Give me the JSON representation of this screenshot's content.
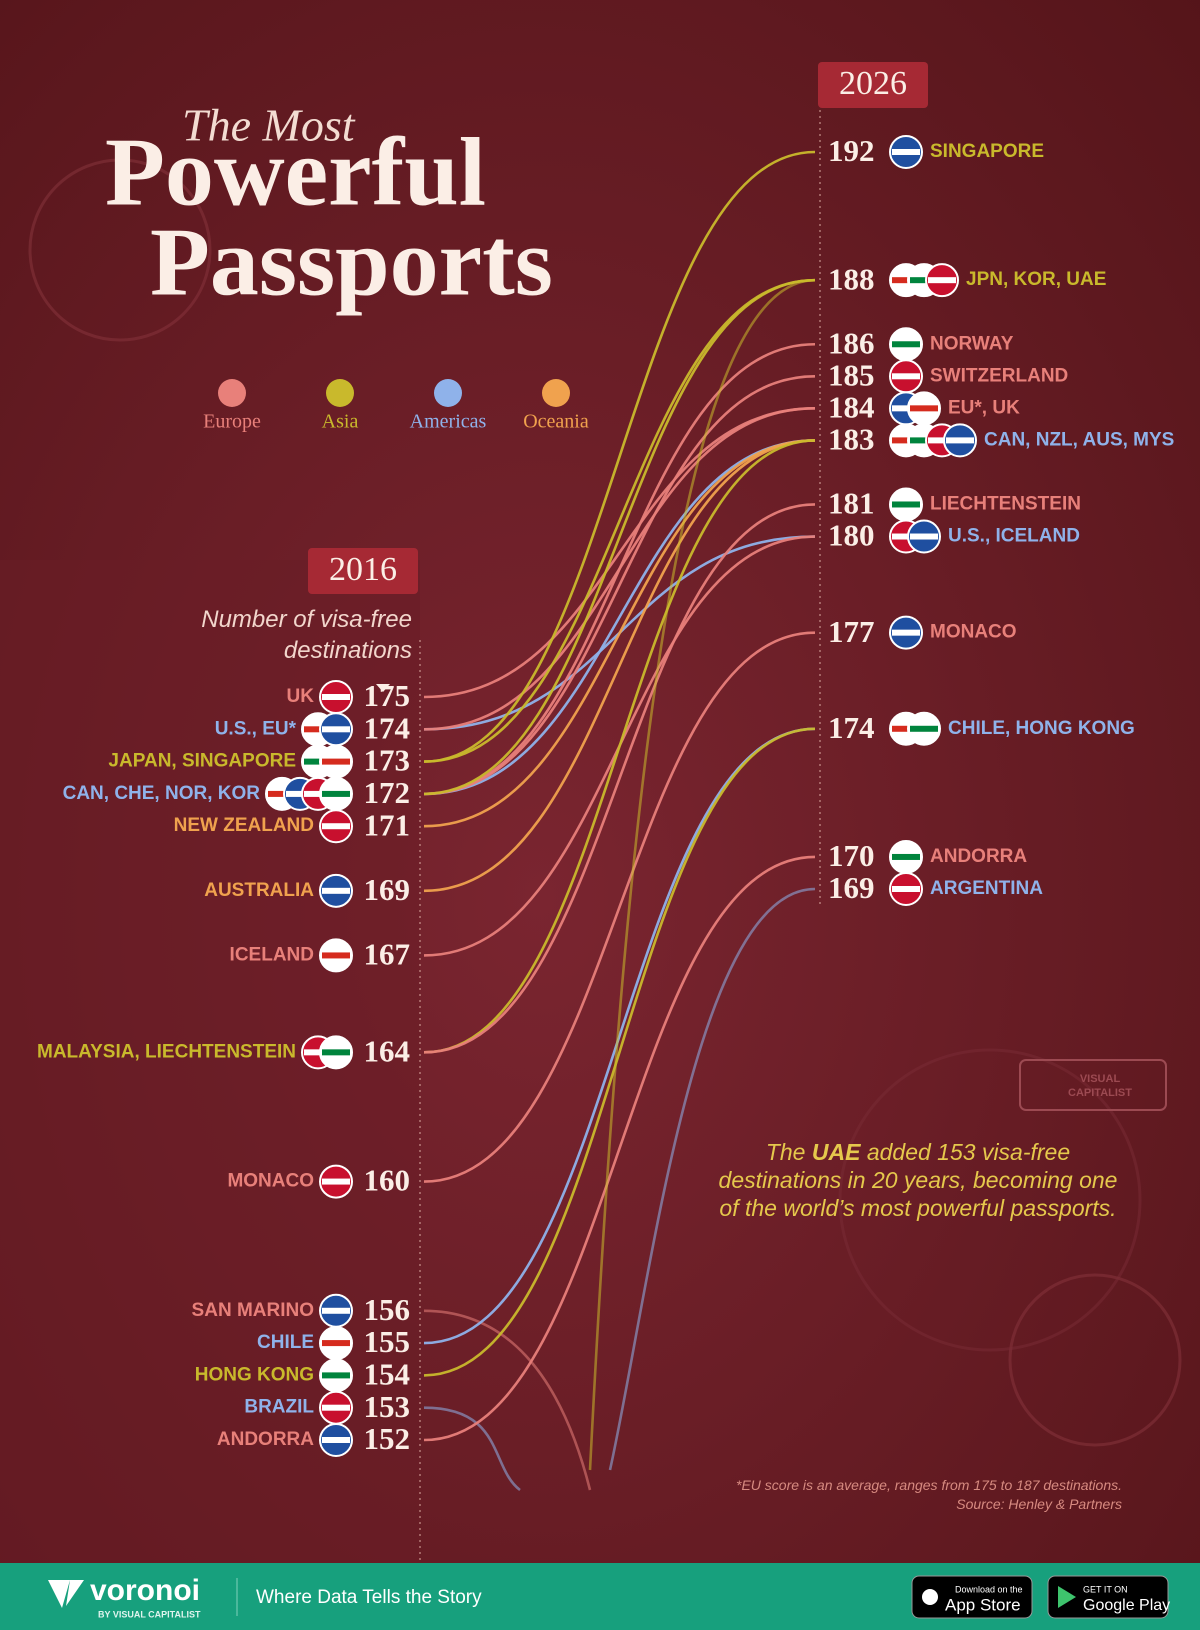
{
  "chart_data": {
    "type": "slope",
    "title": [
      "The Most",
      "Powerful",
      "Passports"
    ],
    "legend": [
      {
        "name": "Europe",
        "color": "#e8807a"
      },
      {
        "name": "Asia",
        "color": "#c9b92c"
      },
      {
        "name": "Americas",
        "color": "#8fb2ea"
      },
      {
        "name": "Oceania",
        "color": "#f0a24e"
      }
    ],
    "start_label": "2016",
    "end_label": "2026",
    "axis_label": "Number of visa-free destinations",
    "ylim": [
      152,
      175
    ],
    "y2lim": [
      169,
      192
    ],
    "start_groups": [
      {
        "label": "UK",
        "value": 175,
        "color": "#e8807a"
      },
      {
        "label": "U.S., EU*",
        "value": 174,
        "color": "#8fb2ea"
      },
      {
        "label": "JAPAN, SINGAPORE",
        "value": 173,
        "color": "#c9b92c"
      },
      {
        "label": "CAN, CHE, NOR, KOR",
        "value": 172,
        "color": "#8fb2ea"
      },
      {
        "label": "NEW ZEALAND",
        "value": 171,
        "color": "#f0a24e"
      },
      {
        "label": "AUSTRALIA",
        "value": 169,
        "color": "#f0a24e"
      },
      {
        "label": "ICELAND",
        "value": 167,
        "color": "#e8807a"
      },
      {
        "label": "MALAYSIA, LIECHTENSTEIN",
        "value": 164,
        "color": "#c9b92c"
      },
      {
        "label": "MONACO",
        "value": 160,
        "color": "#e8807a"
      },
      {
        "label": "SAN MARINO",
        "value": 156,
        "color": "#e8807a"
      },
      {
        "label": "CHILE",
        "value": 155,
        "color": "#8fb2ea"
      },
      {
        "label": "HONG KONG",
        "value": 154,
        "color": "#c9b92c"
      },
      {
        "label": "BRAZIL",
        "value": 153,
        "color": "#8fb2ea"
      },
      {
        "label": "ANDORRA",
        "value": 152,
        "color": "#e8807a"
      }
    ],
    "end_groups": [
      {
        "label": "SINGAPORE",
        "value": 192,
        "color": "#c9b92c"
      },
      {
        "label": "JPN, KOR, UAE",
        "value": 188,
        "color": "#c9b92c"
      },
      {
        "label": "NORWAY",
        "value": 186,
        "color": "#e8807a"
      },
      {
        "label": "SWITZERLAND",
        "value": 185,
        "color": "#e8807a"
      },
      {
        "label": "EU*, UK",
        "value": 184,
        "color": "#e8807a"
      },
      {
        "label": "CAN, NZL, AUS, MYS",
        "value": 183,
        "color": "#8fb2ea"
      },
      {
        "label": "LIECHTENSTEIN",
        "value": 181,
        "color": "#e8807a"
      },
      {
        "label": "U.S., ICELAND",
        "value": 180,
        "color": "#8fb2ea"
      },
      {
        "label": "MONACO",
        "value": 177,
        "color": "#e8807a"
      },
      {
        "label": "CHILE, HONG KONG",
        "value": 174,
        "color": "#8fb2ea"
      },
      {
        "label": "ANDORRA",
        "value": 170,
        "color": "#e8807a"
      },
      {
        "label": "ARGENTINA",
        "value": 169,
        "color": "#8fb2ea"
      }
    ],
    "series": [
      {
        "color": "#e8807a",
        "values": [
          175,
          184
        ]
      },
      {
        "color": "#8fb2ea",
        "values": [
          174,
          180
        ]
      },
      {
        "color": "#e8807a",
        "values": [
          174,
          184
        ]
      },
      {
        "color": "#c9b92c",
        "values": [
          173,
          188
        ]
      },
      {
        "color": "#c9b92c",
        "values": [
          173,
          192
        ]
      },
      {
        "color": "#8fb2ea",
        "values": [
          172,
          183
        ]
      },
      {
        "color": "#e8807a",
        "values": [
          172,
          185
        ]
      },
      {
        "color": "#e8807a",
        "values": [
          172,
          186
        ]
      },
      {
        "color": "#c9b92c",
        "values": [
          172,
          188
        ]
      },
      {
        "color": "#f0a24e",
        "values": [
          171,
          183
        ]
      },
      {
        "color": "#f0a24e",
        "values": [
          169,
          183
        ]
      },
      {
        "color": "#e8807a",
        "values": [
          167,
          180
        ]
      },
      {
        "color": "#c9b92c",
        "values": [
          164,
          183
        ]
      },
      {
        "color": "#e8807a",
        "values": [
          164,
          181
        ]
      },
      {
        "color": "#e8807a",
        "values": [
          160,
          177
        ]
      },
      {
        "color": "#e8807a",
        "values": [
          156,
          null
        ]
      },
      {
        "color": "#8fb2ea",
        "values": [
          155,
          174
        ]
      },
      {
        "color": "#c9b92c",
        "values": [
          154,
          174
        ]
      },
      {
        "color": "#8fb2ea",
        "values": [
          153,
          null
        ]
      },
      {
        "color": "#e8807a",
        "values": [
          152,
          170
        ]
      },
      {
        "color": "#c9b92c",
        "values": [
          null,
          188
        ]
      },
      {
        "color": "#8fb2ea",
        "values": [
          null,
          169
        ]
      }
    ],
    "annotation": [
      "The ",
      "UAE",
      " added 153 visa-free destinations in 20 years, becoming one of the world’s most powerful passports."
    ],
    "footnote": "*EU score is an average, ranges from 175 to 187 destinations.",
    "source": "Source: Henley & Partners",
    "watermark": [
      "VISUAL",
      "CAPITALIST"
    ]
  },
  "footer": {
    "brand": "voronoi",
    "brand_sub": "BY VISUAL CAPITALIST",
    "tagline": "Where Data Tells the Story",
    "app_store": [
      "Download on the",
      "App Store"
    ],
    "google_play": [
      "GET IT ON",
      "Google Play"
    ]
  }
}
